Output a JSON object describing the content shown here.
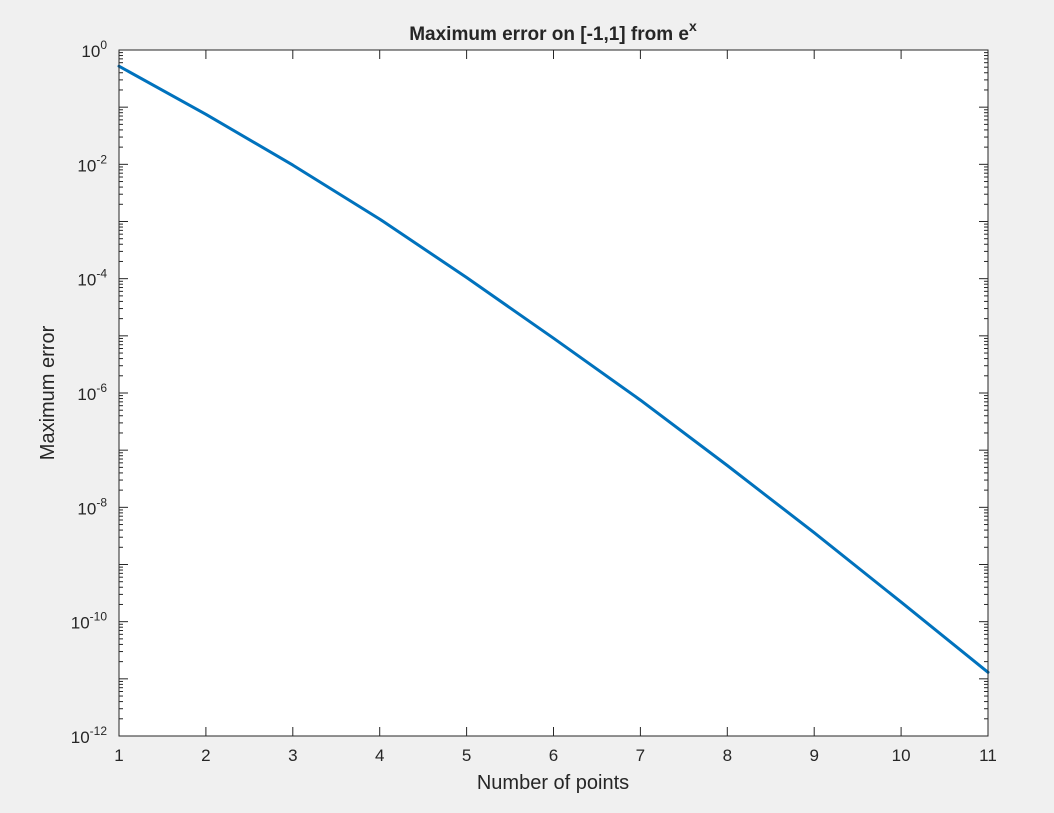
{
  "chart_data": {
    "type": "line",
    "title": "Maximum error on [-1,1] from e",
    "title_superscript": "x",
    "xlabel": "Number of points",
    "ylabel": "Maximum error",
    "xscale": "linear",
    "yscale": "log",
    "xlim": [
      1,
      11
    ],
    "ylim": [
      1e-12,
      1
    ],
    "x_ticks": [
      1,
      2,
      3,
      4,
      5,
      6,
      7,
      8,
      9,
      10,
      11
    ],
    "y_ticks": [
      {
        "value": 1.0,
        "base": "10",
        "exp": "0"
      },
      {
        "value": 0.01,
        "base": "10",
        "exp": "-2"
      },
      {
        "value": 0.0001,
        "base": "10",
        "exp": "-4"
      },
      {
        "value": 1e-06,
        "base": "10",
        "exp": "-6"
      },
      {
        "value": 1e-08,
        "base": "10",
        "exp": "-8"
      },
      {
        "value": 1e-10,
        "base": "10",
        "exp": "-10"
      },
      {
        "value": 1e-12,
        "base": "10",
        "exp": "-12"
      }
    ],
    "grid": false,
    "series": [
      {
        "name": "Maximum error",
        "color": "#0072BD",
        "x": [
          1,
          2,
          3,
          4,
          5,
          6,
          7,
          8,
          9,
          10,
          11
        ],
        "values": [
          0.52,
          0.075,
          0.0097,
          0.0011,
          0.000105,
          9.1e-06,
          7.5e-07,
          5.4e-08,
          3.6e-09,
          2.2e-10,
          1.3e-11
        ]
      }
    ]
  },
  "colors": {
    "figure_background": "#f0f0f0",
    "axes_background": "#ffffff",
    "axes_color": "#262626",
    "line_color": "#0072BD"
  }
}
